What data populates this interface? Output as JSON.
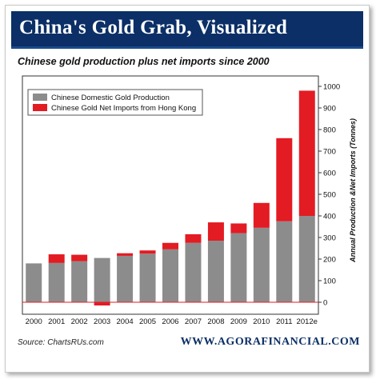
{
  "header": {
    "title": "China's Gold Grab, Visualized",
    "subtitle": "Chinese gold production plus net imports since 2000"
  },
  "footer": {
    "source": "Source: ChartsRUs.com",
    "site": "WWW.AGORAFINANCIAL.COM"
  },
  "colors": {
    "title_bg": "#0b2f66",
    "domestic": "#8c8c8c",
    "imports": "#e31b23",
    "zero_line": "#e31b23"
  },
  "chart_data": {
    "type": "bar",
    "stacked": true,
    "title": "China's Gold Grab, Visualized",
    "subtitle": "Chinese gold production plus net imports since 2000",
    "ylabel": "Annual Production &Net Imports (Tonnes)",
    "y_axis_side": "right",
    "ylim": [
      -30,
      1030
    ],
    "yticks": [
      0,
      100,
      200,
      300,
      400,
      500,
      600,
      700,
      800,
      900,
      1000
    ],
    "categories": [
      "2000",
      "2001",
      "2002",
      "2003",
      "2004",
      "2005",
      "2006",
      "2007",
      "2008",
      "2009",
      "2010",
      "2011",
      "2012e"
    ],
    "series": [
      {
        "name": "Chinese Domestic Gold Production",
        "color": "#8c8c8c",
        "values": [
          180,
          182,
          190,
          205,
          215,
          225,
          245,
          275,
          285,
          320,
          345,
          375,
          400
        ]
      },
      {
        "name": "Chinese Gold Net Imports from Hong Kong",
        "color": "#e31b23",
        "values": [
          0,
          40,
          30,
          -15,
          12,
          15,
          30,
          40,
          85,
          45,
          115,
          385,
          580
        ]
      }
    ],
    "legend_position": "top-left",
    "grid": false
  }
}
